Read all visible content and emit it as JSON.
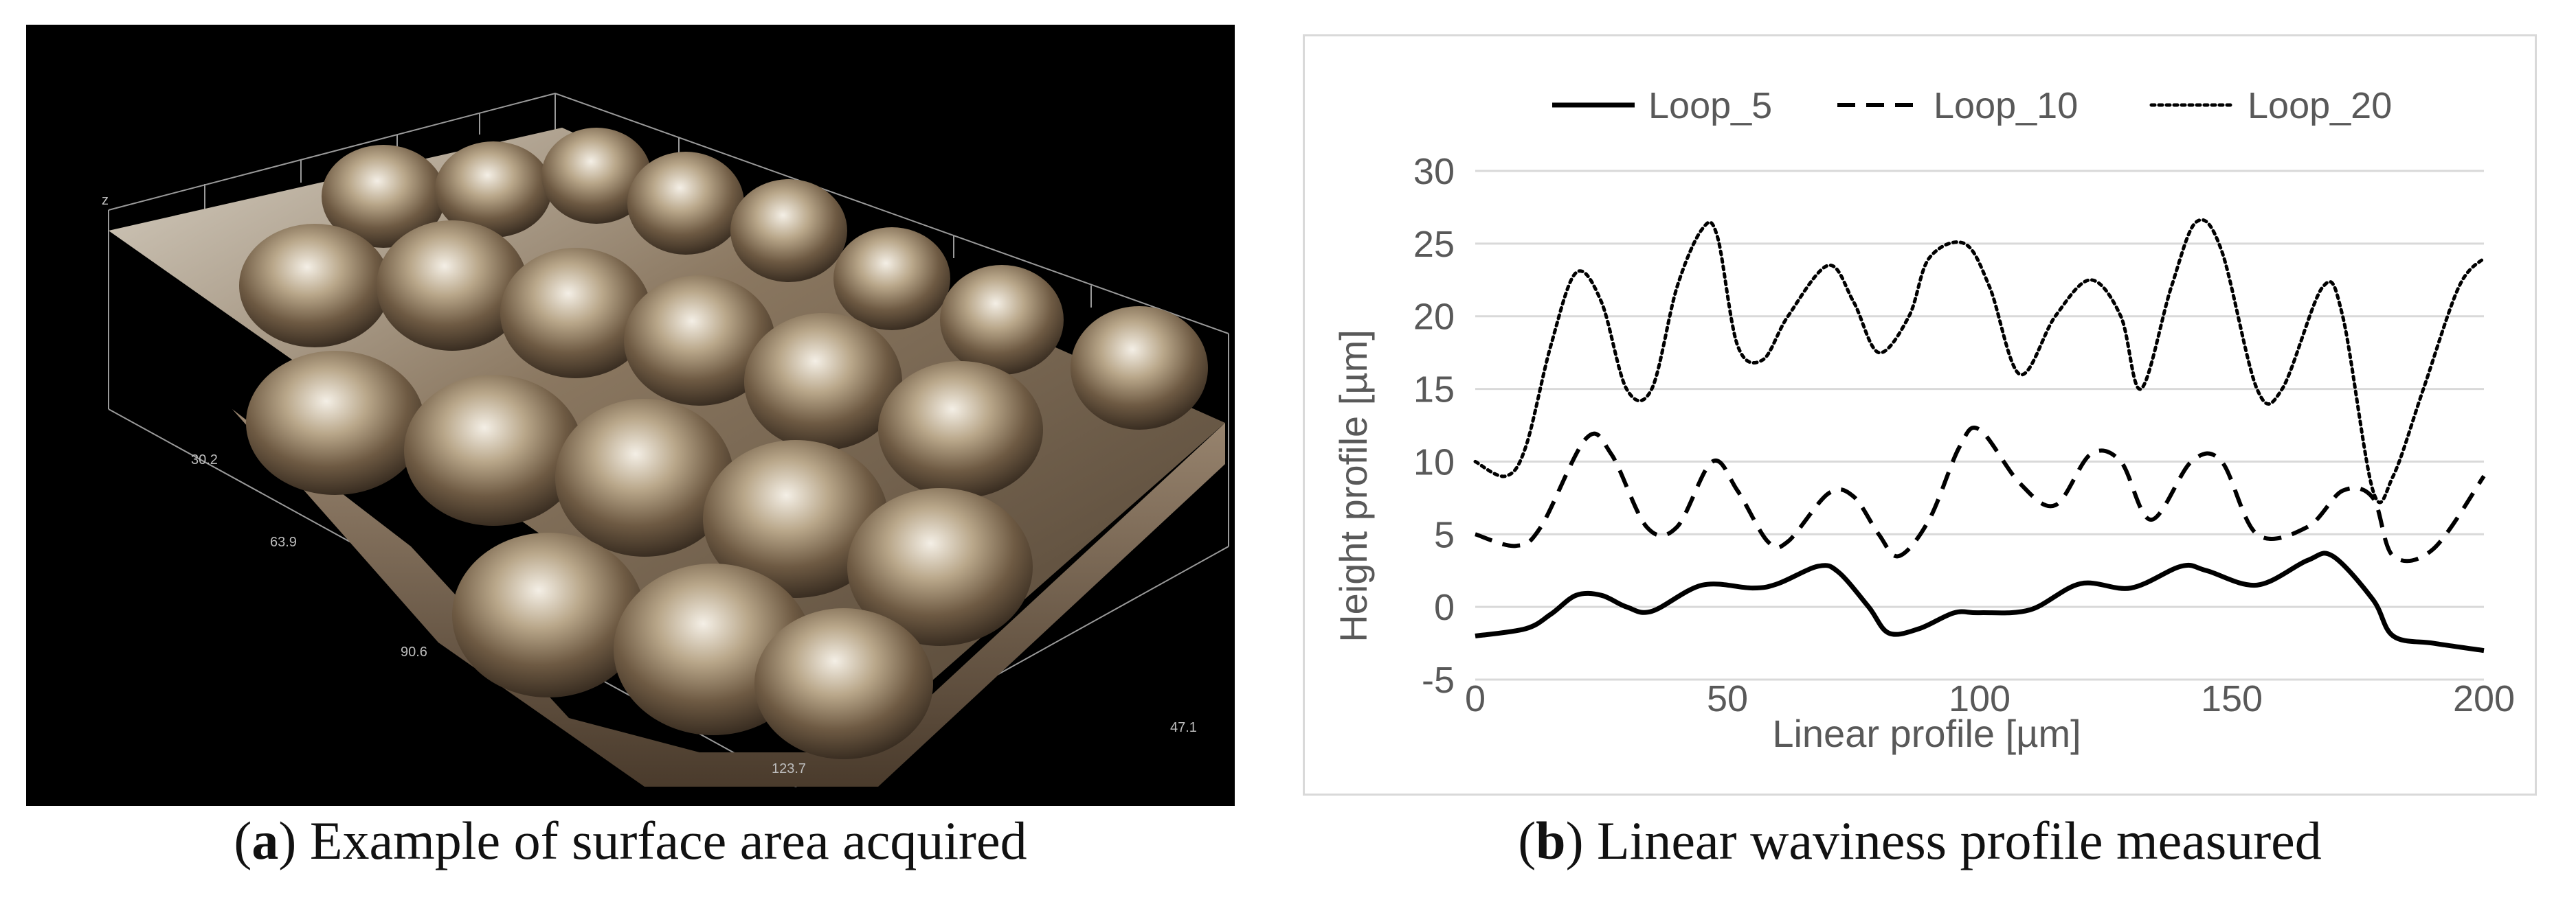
{
  "panel_a": {
    "axis_labels": [
      "z",
      "30.2",
      "63.9",
      "90.6",
      "123.7",
      "47.1"
    ],
    "caption_letter": "a",
    "caption_text": "Example of surface area acquired"
  },
  "panel_b": {
    "caption_letter": "b",
    "caption_text": "Linear waviness profile measured"
  },
  "chart_data": {
    "type": "line",
    "title": "",
    "xlabel": "Linear profile [µm]",
    "ylabel": "Height profile [µm]",
    "xlim": [
      0,
      200
    ],
    "ylim": [
      -5,
      30
    ],
    "xticks": [
      0,
      50,
      100,
      150,
      200
    ],
    "yticks": [
      -5,
      0,
      5,
      10,
      15,
      20,
      25,
      30
    ],
    "grid": "horizontal",
    "legend_position": "top",
    "series": [
      {
        "name": "Loop_5",
        "style": "solid",
        "color": "#000000",
        "x": [
          0,
          10,
          15,
          20,
          25,
          30,
          35,
          45,
          55,
          60,
          68,
          72,
          78,
          82,
          88,
          95,
          100,
          110,
          120,
          130,
          140,
          145,
          155,
          165,
          170,
          178,
          182,
          190,
          200
        ],
        "y": [
          -2,
          -1.5,
          -0.5,
          0.8,
          0.8,
          0,
          -0.3,
          1.5,
          1.3,
          1.6,
          2.8,
          2.4,
          0,
          -1.8,
          -1.5,
          -0.4,
          -0.4,
          -0.2,
          1.6,
          1.3,
          2.8,
          2.5,
          1.5,
          3.2,
          3.5,
          0.5,
          -2,
          -2.5,
          -3
        ]
      },
      {
        "name": "Loop_10",
        "style": "dashed",
        "color": "#000000",
        "x": [
          0,
          8,
          13,
          22,
          27,
          34,
          40,
          47,
          52,
          58,
          62,
          70,
          75,
          80,
          84,
          90,
          96,
          100,
          108,
          115,
          122,
          128,
          134,
          142,
          148,
          155,
          165,
          172,
          178,
          182,
          190,
          200
        ],
        "y": [
          5,
          4.2,
          5.5,
          11.6,
          10.5,
          5.5,
          5.5,
          10,
          8,
          4.5,
          4.5,
          7.8,
          7.6,
          5,
          3.5,
          6,
          11,
          12.2,
          8.5,
          7,
          10.5,
          10,
          6,
          10,
          10,
          5,
          5.5,
          8,
          7.5,
          3.5,
          4,
          9
        ]
      },
      {
        "name": "Loop_20",
        "style": "dotted",
        "color": "#000000",
        "x": [
          0,
          6,
          10,
          15,
          20,
          25,
          30,
          35,
          40,
          45,
          48,
          52,
          57,
          62,
          70,
          75,
          80,
          86,
          90,
          97,
          102,
          108,
          115,
          122,
          128,
          132,
          138,
          143,
          148,
          155,
          160,
          168,
          172,
          178,
          182,
          188,
          195,
          200
        ],
        "y": [
          10,
          9,
          11,
          18,
          23,
          21,
          15,
          15,
          22,
          26,
          25.5,
          18,
          17,
          20,
          23.5,
          21,
          17.5,
          20,
          24,
          25,
          22,
          16,
          20,
          22.5,
          20,
          15,
          22,
          26.5,
          24.5,
          15,
          15,
          22,
          20,
          8,
          9,
          15,
          22,
          24
        ]
      }
    ]
  }
}
